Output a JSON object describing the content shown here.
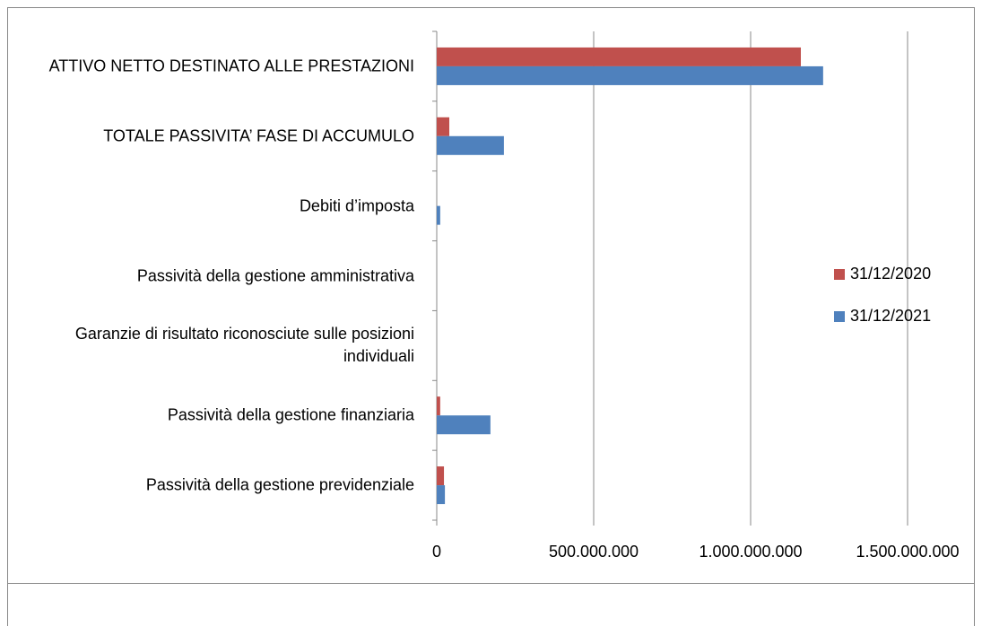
{
  "chart_data": {
    "type": "hbar",
    "categories": [
      "ATTIVO NETTO DESTINATO ALLE PRESTAZIONI",
      "TOTALE PASSIVITA’ FASE DI ACCUMULO",
      "Debiti d’imposta",
      "Passività della gestione amministrativa",
      "Garanzie di risultato riconosciute sulle posizioni individuali",
      "Passività della gestione finanziaria",
      "Passività della gestione previdenziale"
    ],
    "series": [
      {
        "name": "31/12/2020",
        "color": "#c0504d",
        "values": [
          1160000000,
          40000000,
          0,
          0,
          0,
          11000000,
          23000000
        ]
      },
      {
        "name": "31/12/2021",
        "color": "#4f81bd",
        "values": [
          1231000000,
          214000000,
          11000000,
          0,
          0,
          171000000,
          26000000
        ]
      }
    ],
    "xlim": [
      0,
      1500000000
    ],
    "xticks": [
      0,
      {
        "value": 500000000,
        "label": "500.000.000"
      },
      {
        "value": 1000000000,
        "label": "1.000.000.000"
      },
      {
        "value": 1500000000,
        "label": "1.500.000.000"
      }
    ],
    "grid": true,
    "legend": "right"
  }
}
